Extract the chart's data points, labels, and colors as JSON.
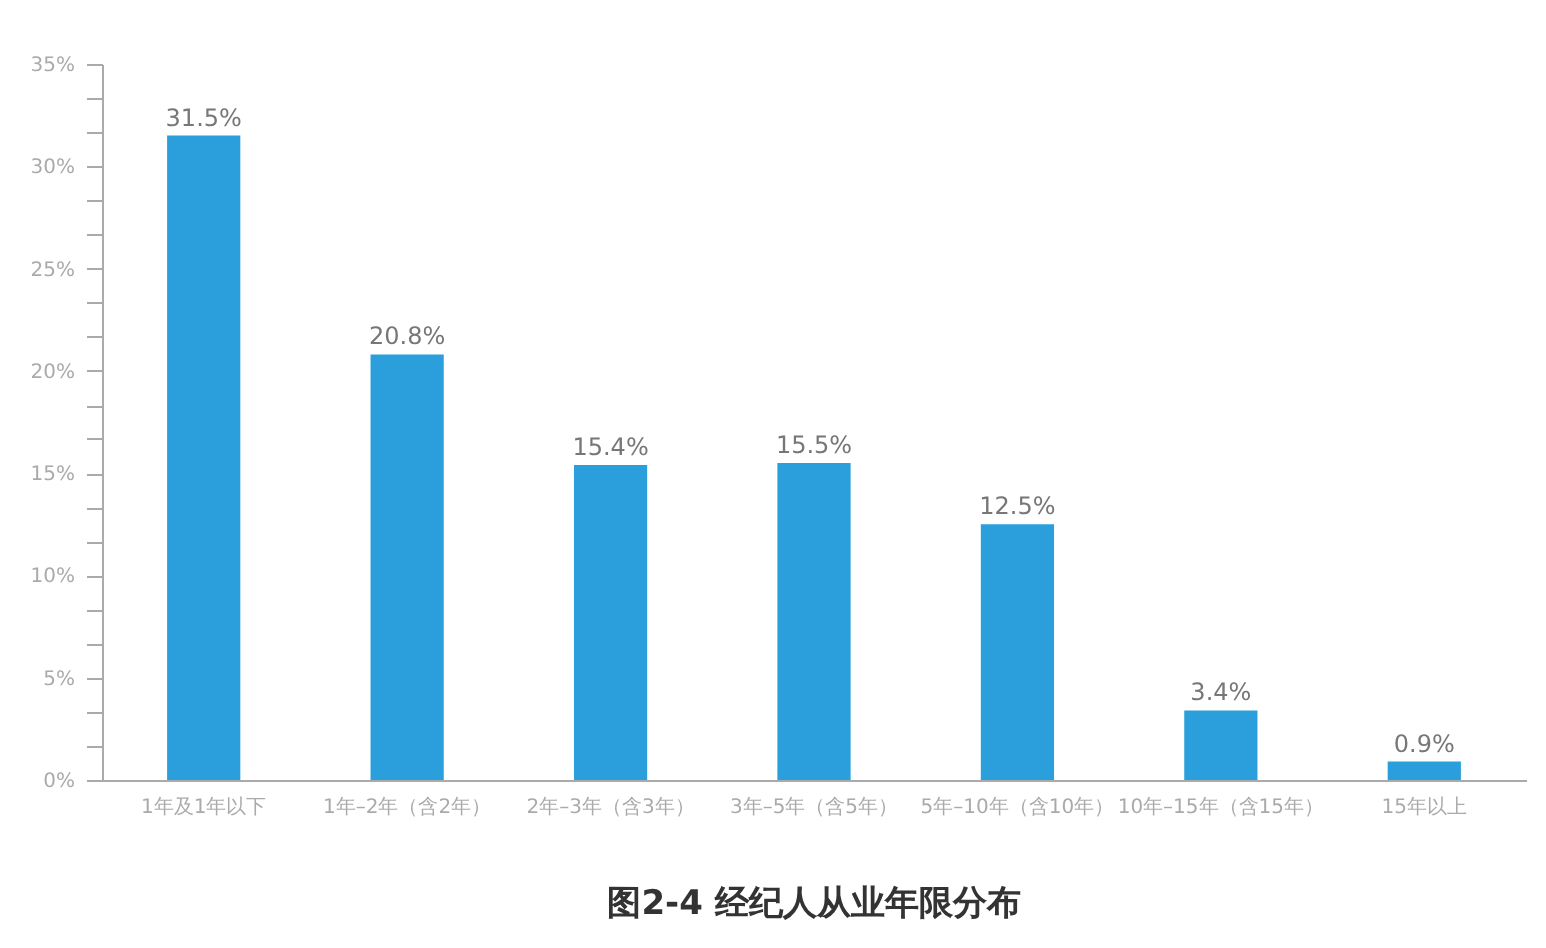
{
  "chart_data": {
    "type": "bar",
    "title": "图2-4 经纪人从业年限分布",
    "categories": [
      "1年及1年以下",
      "1年–2年（含2年）",
      "2年–3年（含3年）",
      "3年–5年（含5年）",
      "5年–10年（含10年）",
      "10年–15年（含15年）",
      "15年以上"
    ],
    "values": [
      31.5,
      20.8,
      15.4,
      15.5,
      12.5,
      3.4,
      0.9
    ],
    "value_labels": [
      "31.5%",
      "20.8%",
      "15.4%",
      "15.5%",
      "12.5%",
      "3.4%",
      "0.9%"
    ],
    "color": "#2a9fdc",
    "ylim": [
      0,
      35
    ],
    "yticks": [
      {
        "value": 0,
        "label": "0%"
      },
      {
        "value": 1.67,
        "label": null
      },
      {
        "value": 3.33,
        "label": null
      },
      {
        "value": 5,
        "label": "5%"
      },
      {
        "value": 6.67,
        "label": null
      },
      {
        "value": 8.33,
        "label": null
      },
      {
        "value": 10,
        "label": "10%"
      },
      {
        "value": 11.67,
        "label": null
      },
      {
        "value": 13.33,
        "label": null
      },
      {
        "value": 15,
        "label": "15%"
      },
      {
        "value": 16.67,
        "label": null
      },
      {
        "value": 18.33,
        "label": null
      },
      {
        "value": 20,
        "label": "20%"
      },
      {
        "value": 21.67,
        "label": null
      },
      {
        "value": 23.33,
        "label": null
      },
      {
        "value": 25,
        "label": "25%"
      },
      {
        "value": 26.67,
        "label": null
      },
      {
        "value": 28.33,
        "label": null
      },
      {
        "value": 30,
        "label": "30%"
      },
      {
        "value": 31.67,
        "label": null
      },
      {
        "value": 33.33,
        "label": null
      },
      {
        "value": 35,
        "label": "35%"
      }
    ],
    "grid": false
  }
}
